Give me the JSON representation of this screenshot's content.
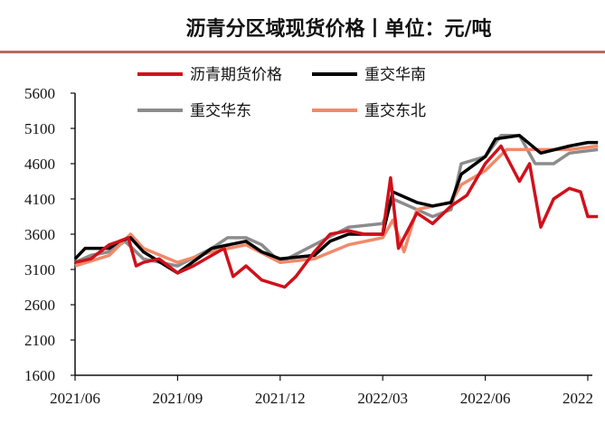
{
  "title": "沥青分区域现货价格丨单位：元/吨",
  "chart_data": {
    "type": "line",
    "title": "沥青分区域现货价格丨单位：元/吨",
    "xlabel": "",
    "ylabel": "",
    "ylim": [
      1600,
      5600
    ],
    "yticks": [
      "5600",
      "5100",
      "4600",
      "4100",
      "3600",
      "3100",
      "2600",
      "2100",
      "1600"
    ],
    "xticks": [
      "2021/06",
      "2021/09",
      "2021/12",
      "2022/03",
      "2022/06",
      "2022"
    ],
    "legend_position": "top",
    "grid": false,
    "series": [
      {
        "name": "沥青期货价格",
        "color": "#d0101b",
        "points": [
          [
            "2021-06-01",
            3200
          ],
          [
            "2021-06-15",
            3250
          ],
          [
            "2021-07-01",
            3450
          ],
          [
            "2021-07-10",
            3500
          ],
          [
            "2021-07-18",
            3550
          ],
          [
            "2021-07-25",
            3150
          ],
          [
            "2021-08-01",
            3200
          ],
          [
            "2021-08-15",
            3250
          ],
          [
            "2021-09-01",
            3050
          ],
          [
            "2021-09-15",
            3150
          ],
          [
            "2021-10-01",
            3300
          ],
          [
            "2021-10-12",
            3400
          ],
          [
            "2021-10-20",
            3000
          ],
          [
            "2021-11-01",
            3150
          ],
          [
            "2021-11-15",
            2950
          ],
          [
            "2021-12-05",
            2850
          ],
          [
            "2021-12-15",
            3000
          ],
          [
            "2022-01-01",
            3350
          ],
          [
            "2022-01-15",
            3600
          ],
          [
            "2022-02-01",
            3650
          ],
          [
            "2022-02-15",
            3600
          ],
          [
            "2022-03-01",
            3600
          ],
          [
            "2022-03-08",
            4400
          ],
          [
            "2022-03-15",
            3400
          ],
          [
            "2022-04-01",
            3900
          ],
          [
            "2022-04-15",
            3750
          ],
          [
            "2022-05-01",
            4000
          ],
          [
            "2022-05-15",
            4150
          ],
          [
            "2022-06-01",
            4600
          ],
          [
            "2022-06-15",
            4850
          ],
          [
            "2022-07-01",
            4350
          ],
          [
            "2022-07-10",
            4600
          ],
          [
            "2022-07-20",
            3700
          ],
          [
            "2022-08-01",
            4100
          ],
          [
            "2022-08-15",
            4250
          ],
          [
            "2022-08-25",
            4200
          ],
          [
            "2022-09-01",
            3850
          ],
          [
            "2022-09-10",
            3850
          ]
        ]
      },
      {
        "name": "重交华南",
        "color": "#000000",
        "points": [
          [
            "2021-06-01",
            3250
          ],
          [
            "2021-06-10",
            3400
          ],
          [
            "2021-07-01",
            3400
          ],
          [
            "2021-07-10",
            3500
          ],
          [
            "2021-07-20",
            3550
          ],
          [
            "2021-08-01",
            3350
          ],
          [
            "2021-09-01",
            3050
          ],
          [
            "2021-10-01",
            3400
          ],
          [
            "2021-11-01",
            3500
          ],
          [
            "2021-11-15",
            3350
          ],
          [
            "2021-12-01",
            3250
          ],
          [
            "2022-01-01",
            3300
          ],
          [
            "2022-01-15",
            3500
          ],
          [
            "2022-02-01",
            3600
          ],
          [
            "2022-03-01",
            3600
          ],
          [
            "2022-03-10",
            4200
          ],
          [
            "2022-04-01",
            4050
          ],
          [
            "2022-04-15",
            4000
          ],
          [
            "2022-05-01",
            4050
          ],
          [
            "2022-05-10",
            4450
          ],
          [
            "2022-06-01",
            4700
          ],
          [
            "2022-06-10",
            4950
          ],
          [
            "2022-07-01",
            5000
          ],
          [
            "2022-07-20",
            4750
          ],
          [
            "2022-08-15",
            4850
          ],
          [
            "2022-09-01",
            4900
          ],
          [
            "2022-09-10",
            4900
          ]
        ]
      },
      {
        "name": "重交华东",
        "color": "#8c8c8c",
        "points": [
          [
            "2021-06-01",
            3200
          ],
          [
            "2021-06-15",
            3300
          ],
          [
            "2021-07-01",
            3350
          ],
          [
            "2021-07-15",
            3500
          ],
          [
            "2021-08-01",
            3250
          ],
          [
            "2021-09-01",
            3150
          ],
          [
            "2021-10-01",
            3400
          ],
          [
            "2021-10-15",
            3550
          ],
          [
            "2021-11-01",
            3550
          ],
          [
            "2021-11-15",
            3450
          ],
          [
            "2021-12-01",
            3200
          ],
          [
            "2022-01-01",
            3450
          ],
          [
            "2022-02-01",
            3700
          ],
          [
            "2022-03-01",
            3750
          ],
          [
            "2022-03-10",
            4100
          ],
          [
            "2022-04-01",
            3950
          ],
          [
            "2022-04-15",
            3850
          ],
          [
            "2022-05-01",
            3950
          ],
          [
            "2022-05-10",
            4600
          ],
          [
            "2022-06-01",
            4700
          ],
          [
            "2022-06-15",
            5000
          ],
          [
            "2022-07-01",
            5000
          ],
          [
            "2022-07-15",
            4600
          ],
          [
            "2022-08-01",
            4600
          ],
          [
            "2022-08-15",
            4750
          ],
          [
            "2022-09-10",
            4800
          ]
        ]
      },
      {
        "name": "重交东北",
        "color": "#f08a6a",
        "points": [
          [
            "2021-06-01",
            3150
          ],
          [
            "2021-07-01",
            3300
          ],
          [
            "2021-07-20",
            3600
          ],
          [
            "2021-08-01",
            3400
          ],
          [
            "2021-09-01",
            3200
          ],
          [
            "2021-10-01",
            3350
          ],
          [
            "2021-11-01",
            3450
          ],
          [
            "2021-12-01",
            3200
          ],
          [
            "2022-01-01",
            3250
          ],
          [
            "2022-02-01",
            3450
          ],
          [
            "2022-03-01",
            3550
          ],
          [
            "2022-03-10",
            3800
          ],
          [
            "2022-03-20",
            3350
          ],
          [
            "2022-04-01",
            3950
          ],
          [
            "2022-05-01",
            4050
          ],
          [
            "2022-05-10",
            4300
          ],
          [
            "2022-06-01",
            4500
          ],
          [
            "2022-06-20",
            4800
          ],
          [
            "2022-07-01",
            4800
          ],
          [
            "2022-08-15",
            4800
          ],
          [
            "2022-09-10",
            4850
          ]
        ]
      }
    ]
  }
}
